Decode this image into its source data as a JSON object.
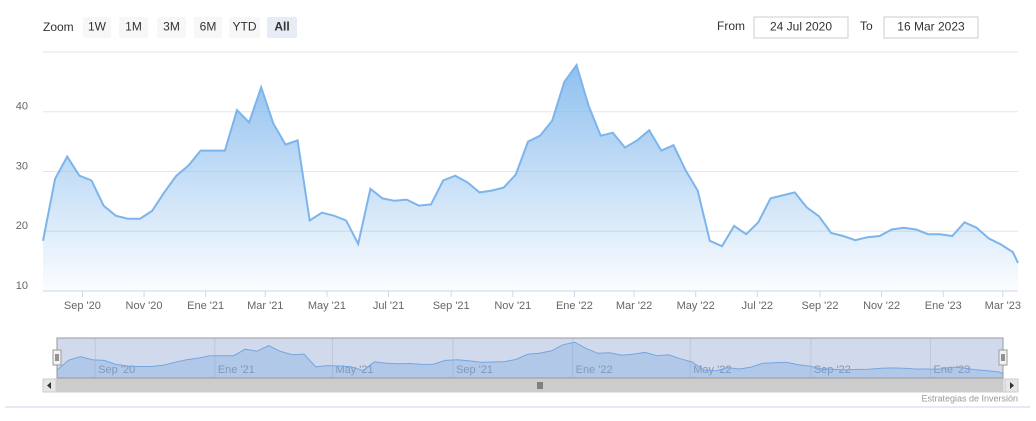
{
  "chart_data": {
    "type": "area",
    "range_selector": {
      "label": "Zoom",
      "buttons": [
        "1W",
        "1M",
        "3M",
        "6M",
        "YTD",
        "All"
      ],
      "selected": 5
    },
    "from_label": "From",
    "from_value": "24 Jul 2020",
    "to_label": "To",
    "to_value": "16 Mar 2023",
    "credit": "Estrategias de Inversión",
    "color": "#7cb5ec",
    "grid": true,
    "xlim": [
      "2020-07-24",
      "2023-03-16"
    ],
    "ylim": [
      10,
      50
    ],
    "yticks": [
      10,
      20,
      30,
      40
    ],
    "xticks": [
      {
        "value": "2020-09-01",
        "label": "Sep '20"
      },
      {
        "value": "2020-11-01",
        "label": "Nov '20"
      },
      {
        "value": "2021-01-01",
        "label": "Ene '21"
      },
      {
        "value": "2021-03-01",
        "label": "Mar '21"
      },
      {
        "value": "2021-05-01",
        "label": "May '21"
      },
      {
        "value": "2021-07-01",
        "label": "Jul '21"
      },
      {
        "value": "2021-09-01",
        "label": "Sep '21"
      },
      {
        "value": "2021-11-01",
        "label": "Nov '21"
      },
      {
        "value": "2022-01-01",
        "label": "Ene '22"
      },
      {
        "value": "2022-03-01",
        "label": "Mar '22"
      },
      {
        "value": "2022-05-01",
        "label": "May '22"
      },
      {
        "value": "2022-07-01",
        "label": "Jul '22"
      },
      {
        "value": "2022-09-01",
        "label": "Sep '22"
      },
      {
        "value": "2022-11-01",
        "label": "Nov '22"
      },
      {
        "value": "2023-01-01",
        "label": "Ene '23"
      },
      {
        "value": "2023-03-01",
        "label": "Mar '23"
      }
    ],
    "navigator_xticks": [
      {
        "value": "2020-09-01",
        "label": "Sep '20"
      },
      {
        "value": "2021-01-01",
        "label": "Ene '21"
      },
      {
        "value": "2021-05-01",
        "label": "May '21"
      },
      {
        "value": "2021-09-01",
        "label": "Sep '21"
      },
      {
        "value": "2022-01-01",
        "label": "Ene '22"
      },
      {
        "value": "2022-05-01",
        "label": "May '22"
      },
      {
        "value": "2022-09-01",
        "label": "Sep '22"
      },
      {
        "value": "2023-01-01",
        "label": "Ene '23"
      }
    ],
    "x": [
      "2020-07-24",
      "2020-08-05",
      "2020-08-17",
      "2020-08-29",
      "2020-09-10",
      "2020-09-22",
      "2020-10-04",
      "2020-10-16",
      "2020-10-28",
      "2020-11-09",
      "2020-11-21",
      "2020-12-03",
      "2020-12-15",
      "2020-12-27",
      "2021-01-08",
      "2021-01-20",
      "2021-02-01",
      "2021-02-13",
      "2021-02-25",
      "2021-03-09",
      "2021-03-21",
      "2021-04-02",
      "2021-04-14",
      "2021-04-26",
      "2021-05-08",
      "2021-05-20",
      "2021-06-01",
      "2021-06-13",
      "2021-06-25",
      "2021-07-07",
      "2021-07-19",
      "2021-07-31",
      "2021-08-12",
      "2021-08-24",
      "2021-09-05",
      "2021-09-17",
      "2021-09-29",
      "2021-10-11",
      "2021-10-23",
      "2021-11-04",
      "2021-11-16",
      "2021-11-28",
      "2021-12-10",
      "2021-12-22",
      "2022-01-03",
      "2022-01-15",
      "2022-01-27",
      "2022-02-08",
      "2022-02-20",
      "2022-03-04",
      "2022-03-16",
      "2022-03-28",
      "2022-04-09",
      "2022-04-21",
      "2022-05-03",
      "2022-05-15",
      "2022-05-27",
      "2022-06-08",
      "2022-06-20",
      "2022-07-02",
      "2022-07-14",
      "2022-07-26",
      "2022-08-07",
      "2022-08-19",
      "2022-08-31",
      "2022-09-12",
      "2022-09-24",
      "2022-10-06",
      "2022-10-18",
      "2022-10-30",
      "2022-11-11",
      "2022-11-23",
      "2022-12-05",
      "2022-12-17",
      "2022-12-29",
      "2023-01-10",
      "2023-01-22",
      "2023-02-03",
      "2023-02-15",
      "2023-02-27",
      "2023-03-11",
      "2023-03-16"
    ],
    "values": [
      18.4,
      28.8,
      32.5,
      29.3,
      28.5,
      24.3,
      22.6,
      22.1,
      22.1,
      23.4,
      26.5,
      29.3,
      31,
      33.5,
      33.5,
      33.5,
      40.3,
      38.2,
      44.1,
      38,
      34.5,
      35.2,
      21.8,
      23.1,
      22.6,
      21.8,
      17.9,
      27.1,
      25.5,
      25.1,
      25.3,
      24.3,
      24.5,
      28.5,
      29.3,
      28.2,
      26.5,
      26.8,
      27.3,
      29.5,
      35,
      36,
      38.5,
      45,
      47.8,
      41,
      36,
      36.5,
      34,
      35.2,
      36.9,
      33.5,
      34.4,
      30.2,
      26.8,
      18.4,
      17.5,
      20.9,
      19.5,
      21.5,
      25.5,
      26,
      26.5,
      24,
      22.5,
      19.7,
      19.2,
      18.5,
      19,
      19.2,
      20.3,
      20.6,
      20.3,
      19.5,
      19.5,
      19.2,
      21.5,
      20.6,
      18.8,
      17.8,
      16.5,
      14.7
    ]
  }
}
